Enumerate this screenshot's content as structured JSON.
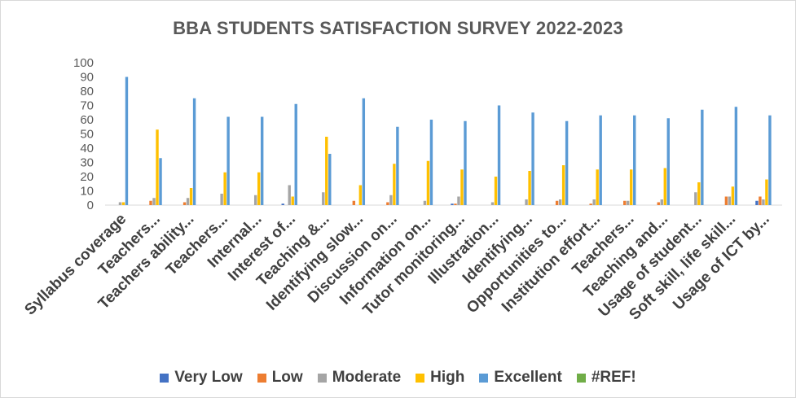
{
  "chart_data": {
    "type": "bar",
    "title": "BBA STUDENTS SATISFACTION SURVEY 2022-2023",
    "xlabel": "",
    "ylabel": "",
    "ylim": [
      0,
      100
    ],
    "yticks": [
      0,
      10,
      20,
      30,
      40,
      50,
      60,
      70,
      80,
      90,
      100
    ],
    "grid": false,
    "legend_position": "bottom",
    "categories": [
      "Syllabus coverage",
      "Teachers...",
      "Teachers ability...",
      "Teachers...",
      "Internal...",
      "Interest of...",
      "Teaching &...",
      "Identifying slow...",
      "Discussion on...",
      "Information on...",
      "Tutor monitoring...",
      "Illustration...",
      "Identifying...",
      "Opportunities to...",
      "Institution effort...",
      "Teachers...",
      "Teaching and...",
      "Usage of  student...",
      "Soft skill, life skill...",
      "Usage of ICT by..."
    ],
    "series": [
      {
        "name": "Very Low",
        "color": "#4472c4",
        "values": [
          0,
          0,
          0,
          0,
          0,
          1,
          0,
          0,
          0,
          0,
          1,
          0,
          0,
          0,
          0,
          0,
          0,
          0,
          0,
          3
        ]
      },
      {
        "name": "Low",
        "color": "#ed7d31",
        "values": [
          0,
          3,
          2,
          0,
          0,
          0,
          0,
          3,
          2,
          0,
          1,
          0,
          0,
          3,
          1,
          3,
          2,
          0,
          6,
          6
        ]
      },
      {
        "name": "Moderate",
        "color": "#a5a5a5",
        "values": [
          2,
          5,
          5,
          8,
          7,
          14,
          9,
          0,
          7,
          3,
          6,
          2,
          4,
          4,
          4,
          3,
          4,
          9,
          6,
          4
        ]
      },
      {
        "name": "High",
        "color": "#ffc000",
        "values": [
          2,
          53,
          12,
          23,
          23,
          6,
          48,
          14,
          29,
          31,
          25,
          20,
          24,
          28,
          25,
          25,
          26,
          16,
          13,
          18
        ]
      },
      {
        "name": "Excellent",
        "color": "#5b9bd5",
        "values": [
          90,
          33,
          75,
          62,
          62,
          71,
          36,
          75,
          55,
          60,
          59,
          70,
          65,
          59,
          63,
          63,
          61,
          67,
          69,
          63
        ]
      },
      {
        "name": "#REF!",
        "color": "#70ad47",
        "values": [
          0,
          0,
          0,
          0,
          0,
          0,
          0,
          0,
          0,
          0,
          0,
          0,
          0,
          0,
          0,
          0,
          0,
          0,
          0,
          0
        ]
      }
    ]
  }
}
